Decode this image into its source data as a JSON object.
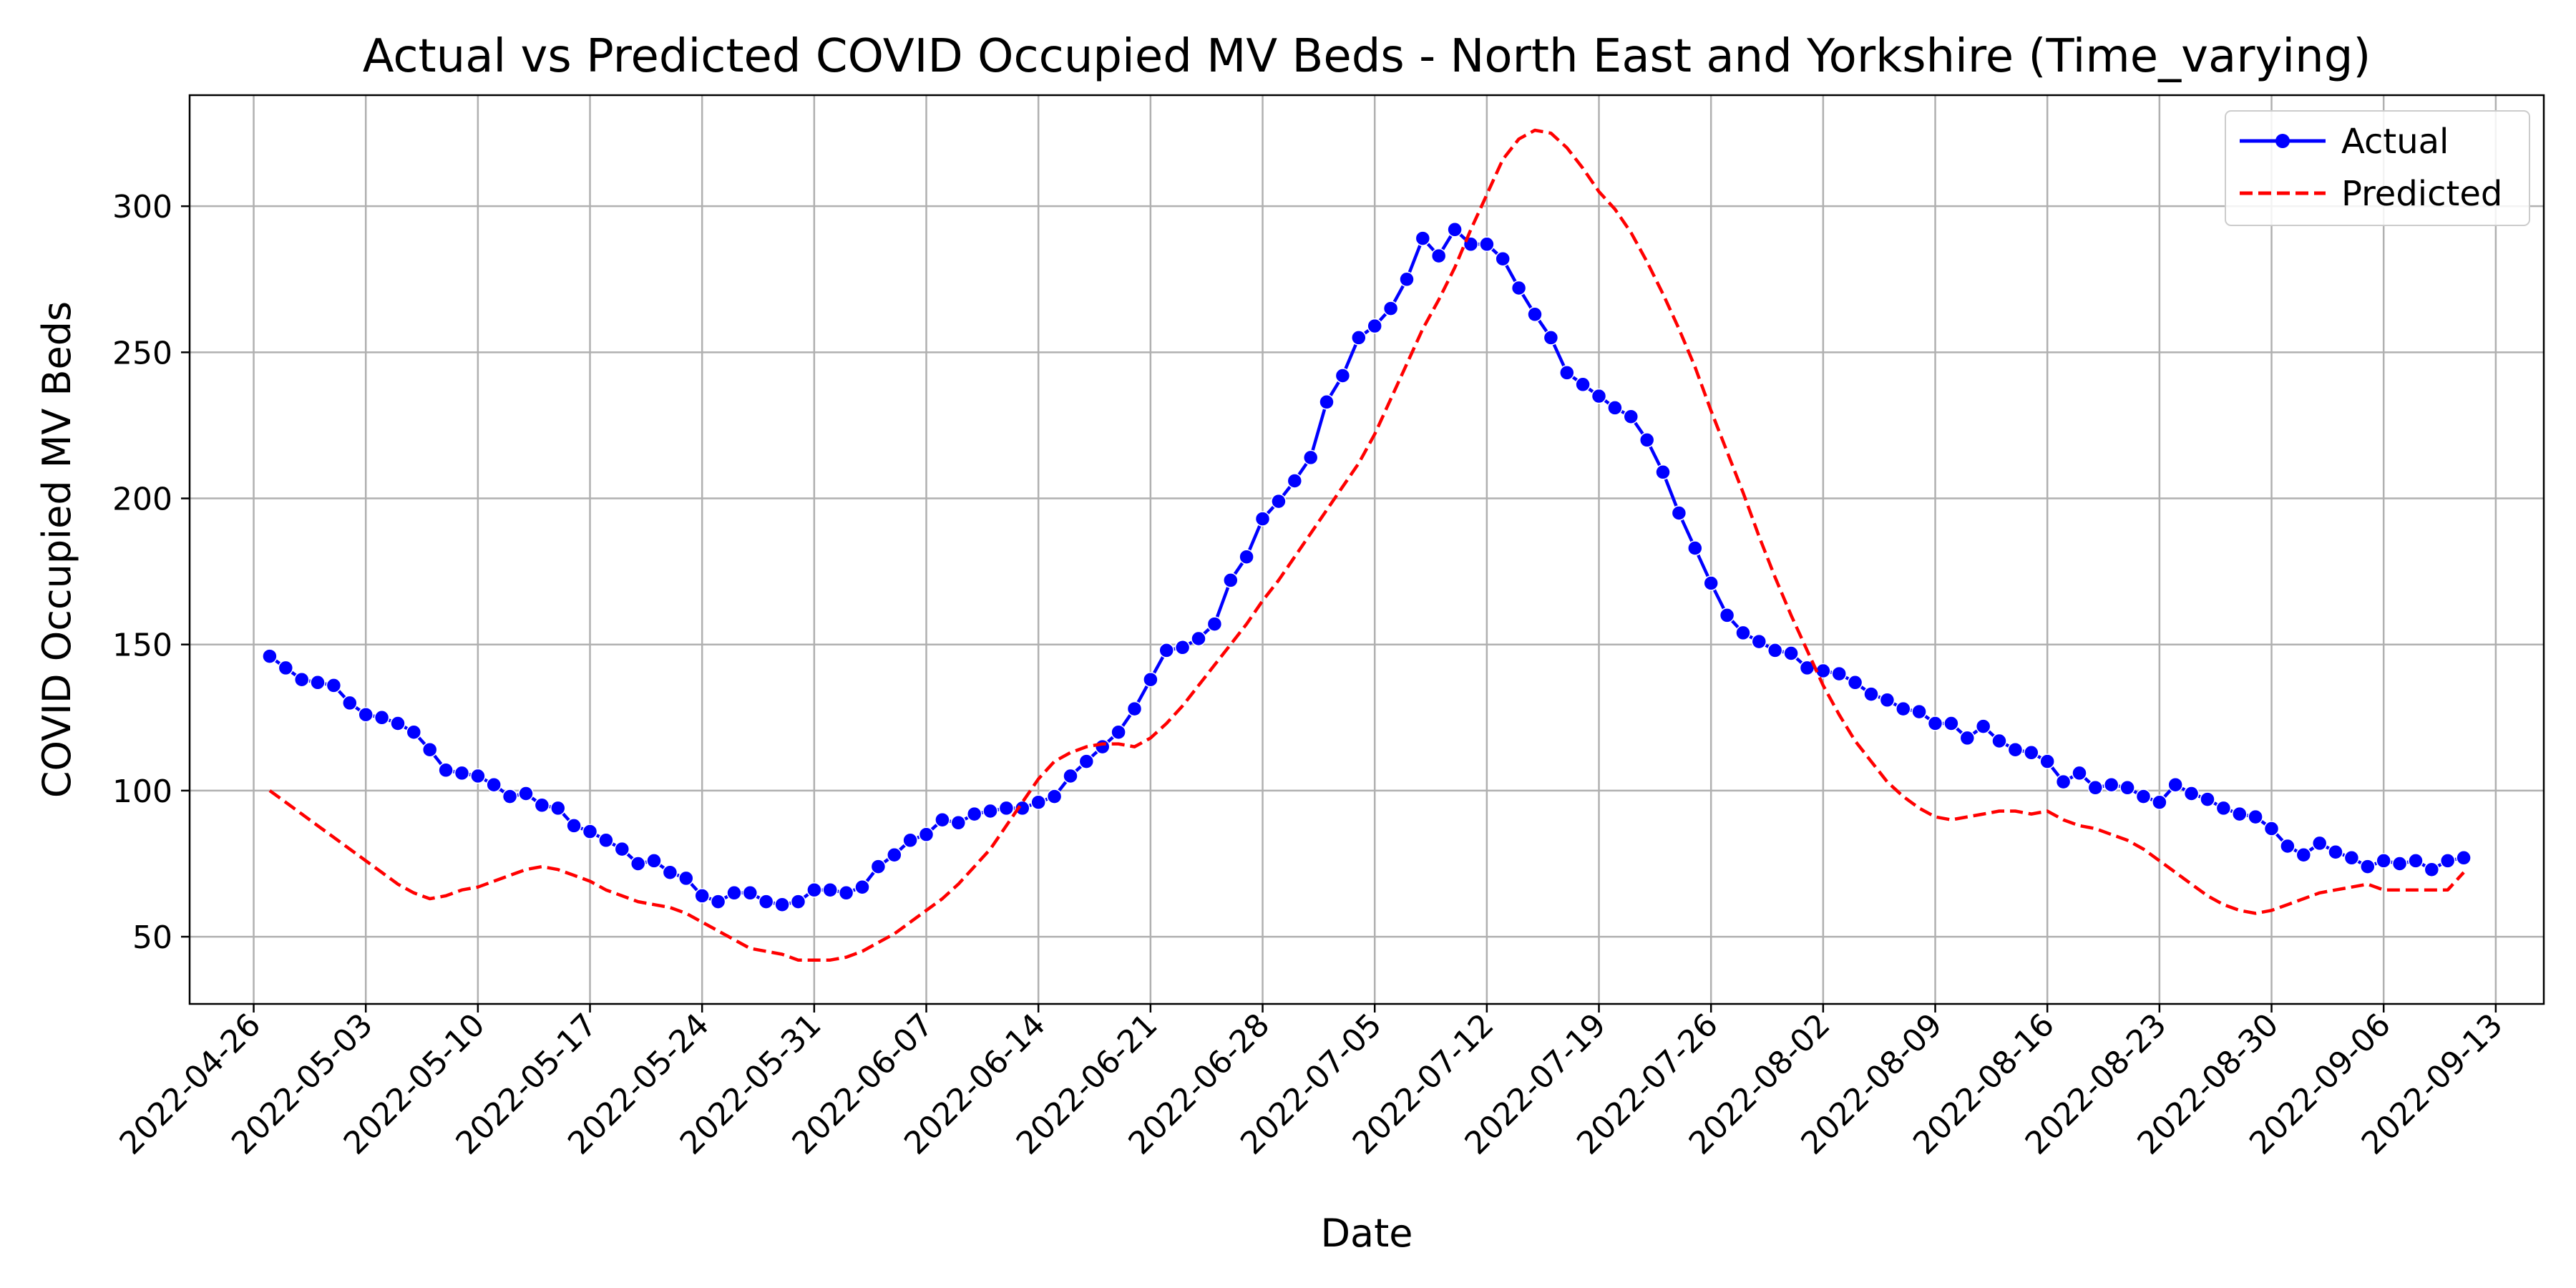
{
  "chart_data": {
    "type": "line",
    "title": "Actual vs Predicted COVID Occupied MV Beds - North East and Yorkshire (Time_varying)",
    "xlabel": "Date",
    "ylabel": "COVID Occupied MV Beds",
    "x_start": "2022-04-27",
    "x_tick_labels": [
      "2022-04-26",
      "2022-05-03",
      "2022-05-10",
      "2022-05-17",
      "2022-05-24",
      "2022-05-31",
      "2022-06-07",
      "2022-06-14",
      "2022-06-21",
      "2022-06-28",
      "2022-07-05",
      "2022-07-12",
      "2022-07-19",
      "2022-07-26",
      "2022-08-02",
      "2022-08-09",
      "2022-08-16",
      "2022-08-23",
      "2022-08-30",
      "2022-09-06",
      "2022-09-13"
    ],
    "y_ticks": [
      50,
      100,
      150,
      200,
      250,
      300
    ],
    "xlim": [
      "2022-04-22",
      "2022-09-16"
    ],
    "ylim": [
      27,
      338
    ],
    "grid": true,
    "legend_position": "top-right",
    "series": [
      {
        "name": "Actual",
        "color": "#0000ff",
        "style": "solid-with-markers",
        "values": [
          146,
          142,
          138,
          137,
          136,
          130,
          126,
          125,
          123,
          120,
          114,
          107,
          106,
          105,
          102,
          98,
          99,
          95,
          94,
          88,
          86,
          83,
          80,
          75,
          76,
          72,
          70,
          64,
          62,
          65,
          65,
          62,
          61,
          62,
          66,
          66,
          65,
          67,
          74,
          78,
          83,
          85,
          90,
          89,
          92,
          93,
          94,
          94,
          96,
          98,
          105,
          110,
          115,
          120,
          128,
          138,
          148,
          149,
          152,
          157,
          172,
          180,
          193,
          199,
          206,
          214,
          233,
          242,
          255,
          259,
          265,
          275,
          289,
          283,
          292,
          287,
          287,
          282,
          272,
          263,
          255,
          243,
          239,
          235,
          231,
          228,
          220,
          209,
          195,
          183,
          171,
          160,
          154,
          151,
          148,
          147,
          142,
          141,
          140,
          137,
          133,
          131,
          128,
          127,
          123,
          123,
          118,
          122,
          117,
          114,
          113,
          110,
          103,
          106,
          101,
          102,
          101,
          98,
          96,
          102,
          99,
          97,
          94,
          92,
          91,
          87,
          81,
          78,
          82,
          79,
          77,
          74,
          76,
          75,
          76,
          73,
          76,
          77
        ]
      },
      {
        "name": "Predicted",
        "color": "#ff0000",
        "style": "dashed",
        "values": [
          100,
          96,
          92,
          88,
          84,
          80,
          76,
          72,
          68,
          65,
          63,
          64,
          66,
          67,
          69,
          71,
          73,
          74,
          73,
          71,
          69,
          66,
          64,
          62,
          61,
          60,
          58,
          55,
          52,
          49,
          46,
          45,
          44,
          42,
          42,
          42,
          43,
          45,
          48,
          51,
          55,
          59,
          63,
          68,
          74,
          80,
          88,
          96,
          104,
          110,
          113,
          115,
          116,
          116,
          115,
          118,
          123,
          129,
          136,
          143,
          150,
          157,
          165,
          172,
          180,
          188,
          196,
          204,
          212,
          222,
          234,
          246,
          258,
          268,
          279,
          292,
          304,
          316,
          323,
          326,
          325,
          320,
          313,
          305,
          299,
          291,
          281,
          270,
          258,
          245,
          230,
          216,
          202,
          187,
          173,
          160,
          148,
          136,
          126,
          117,
          110,
          103,
          98,
          94,
          91,
          90,
          91,
          92,
          93,
          93,
          92,
          93,
          90,
          88,
          87,
          85,
          83,
          80,
          76,
          72,
          68,
          64,
          61,
          59,
          58,
          59,
          61,
          63,
          65,
          66,
          67,
          68,
          66,
          66,
          66,
          66,
          66,
          72
        ]
      }
    ]
  }
}
